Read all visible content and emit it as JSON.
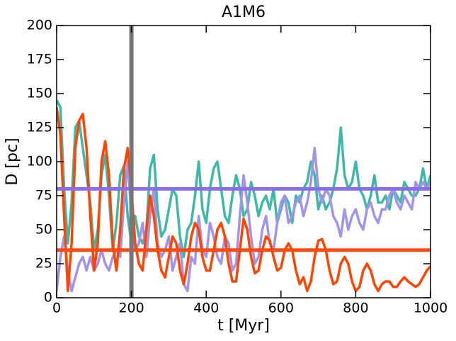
{
  "chart_data": {
    "type": "line",
    "title": "A1M6",
    "xlabel": "t [Myr]",
    "ylabel": "D [pc]",
    "x": [
      0,
      10,
      20,
      30,
      40,
      50,
      60,
      70,
      80,
      90,
      100,
      110,
      120,
      130,
      140,
      150,
      160,
      170,
      180,
      190,
      200,
      210,
      220,
      230,
      240,
      250,
      260,
      270,
      280,
      290,
      300,
      310,
      320,
      330,
      340,
      350,
      360,
      370,
      380,
      390,
      400,
      410,
      420,
      430,
      440,
      450,
      460,
      470,
      480,
      490,
      500,
      510,
      520,
      530,
      540,
      550,
      560,
      570,
      580,
      590,
      600,
      610,
      620,
      630,
      640,
      650,
      660,
      670,
      680,
      690,
      700,
      710,
      720,
      730,
      740,
      750,
      760,
      770,
      780,
      790,
      800,
      810,
      820,
      830,
      840,
      850,
      860,
      870,
      880,
      890,
      900,
      910,
      920,
      930,
      940,
      950,
      960,
      970,
      980,
      990,
      1000
    ],
    "series": [
      {
        "color": "#40b8a8",
        "values": [
          145,
          140,
          80,
          40,
          70,
          125,
          130,
          110,
          90,
          70,
          35,
          50,
          90,
          105,
          75,
          35,
          55,
          90,
          97,
          60,
          40,
          60,
          45,
          40,
          50,
          95,
          105,
          65,
          45,
          50,
          65,
          80,
          75,
          45,
          30,
          50,
          55,
          75,
          100,
          65,
          55,
          80,
          95,
          100,
          80,
          60,
          55,
          75,
          90,
          80,
          60,
          65,
          85,
          75,
          60,
          70,
          75,
          65,
          80,
          55,
          65,
          75,
          70,
          55,
          75,
          70,
          80,
          85,
          100,
          90,
          65,
          75,
          65,
          70,
          80,
          95,
          125,
          90,
          80,
          85,
          100,
          80,
          75,
          65,
          75,
          90,
          70,
          70,
          75,
          65,
          80,
          75,
          70,
          85,
          80,
          75,
          75,
          80,
          95,
          80,
          90
        ]
      },
      {
        "color": "#a394ea",
        "values": [
          5,
          30,
          45,
          20,
          5,
          15,
          25,
          30,
          20,
          30,
          20,
          25,
          35,
          25,
          20,
          30,
          35,
          30,
          70,
          100,
          60,
          35,
          40,
          55,
          30,
          60,
          80,
          40,
          30,
          35,
          45,
          20,
          30,
          40,
          10,
          5,
          30,
          25,
          60,
          35,
          30,
          55,
          45,
          30,
          25,
          45,
          40,
          20,
          25,
          60,
          90,
          70,
          45,
          25,
          30,
          50,
          60,
          40,
          35,
          55,
          70,
          75,
          55,
          60,
          70,
          75,
          60,
          70,
          85,
          110,
          80,
          70,
          80,
          75,
          60,
          55,
          45,
          65,
          50,
          60,
          65,
          55,
          50,
          65,
          70,
          60,
          55,
          65,
          65,
          75,
          80,
          70,
          65,
          75,
          70,
          65,
          85,
          80,
          85,
          80,
          85
        ]
      },
      {
        "color": "#ff4500",
        "values": [
          140,
          120,
          60,
          5,
          40,
          110,
          130,
          135,
          110,
          60,
          20,
          40,
          100,
          115,
          90,
          40,
          20,
          50,
          95,
          110,
          80,
          40,
          25,
          20,
          50,
          75,
          60,
          35,
          20,
          15,
          30,
          45,
          40,
          20,
          10,
          25,
          45,
          55,
          50,
          30,
          20,
          20,
          35,
          50,
          55,
          45,
          25,
          12,
          12,
          35,
          58,
          50,
          30,
          18,
          20,
          35,
          45,
          42,
          30,
          20,
          22,
          35,
          40,
          35,
          20,
          10,
          15,
          5,
          12,
          30,
          42,
          43,
          35,
          20,
          10,
          12,
          25,
          30,
          25,
          12,
          5,
          8,
          20,
          25,
          20,
          10,
          5,
          10,
          12,
          12,
          8,
          8,
          12,
          15,
          12,
          10,
          8,
          10,
          15,
          20,
          23
        ]
      }
    ],
    "hlines": [
      {
        "value": 80,
        "color": "#8a6ee8"
      },
      {
        "value": 35,
        "color": "#ff4a10"
      }
    ],
    "vline": {
      "value": 200,
      "color": "#777777"
    },
    "xlim": [
      0,
      1000
    ],
    "xticks": [
      0,
      200,
      400,
      600,
      800,
      1000
    ],
    "ylim": [
      0,
      200
    ],
    "yticks": [
      0,
      25,
      50,
      75,
      100,
      125,
      150,
      175,
      200
    ]
  }
}
